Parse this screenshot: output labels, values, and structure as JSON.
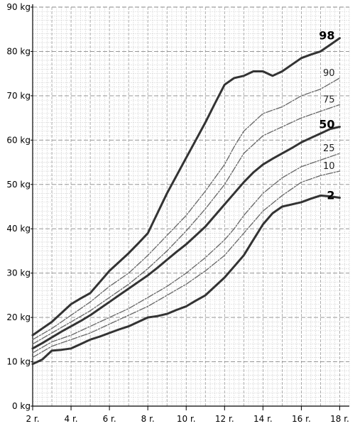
{
  "chart_data": {
    "type": "line",
    "title": "",
    "xlabel": "",
    "ylabel": "",
    "xlim": [
      2,
      18.5
    ],
    "ylim": [
      0,
      90
    ],
    "grid": true,
    "y_ticks": [
      {
        "value": 0,
        "label": "0 kg"
      },
      {
        "value": 10,
        "label": "10 kg"
      },
      {
        "value": 20,
        "label": "20 kg"
      },
      {
        "value": 30,
        "label": "30 kg"
      },
      {
        "value": 40,
        "label": "40 kg"
      },
      {
        "value": 50,
        "label": "50 kg"
      },
      {
        "value": 60,
        "label": "60 kg"
      },
      {
        "value": 70,
        "label": "70 kg"
      },
      {
        "value": 80,
        "label": "80 kg"
      },
      {
        "value": 90,
        "label": "90 kg"
      }
    ],
    "x_ticks": [
      {
        "value": 2,
        "label": "2 r."
      },
      {
        "value": 4,
        "label": "4 r."
      },
      {
        "value": 6,
        "label": "6 r."
      },
      {
        "value": 8,
        "label": "8 r."
      },
      {
        "value": 10,
        "label": "10 r."
      },
      {
        "value": 12,
        "label": "12 r."
      },
      {
        "value": 14,
        "label": "14 r."
      },
      {
        "value": 16,
        "label": "16 r."
      },
      {
        "value": 18,
        "label": "18 r."
      }
    ],
    "series": [
      {
        "name": "98",
        "major": true,
        "x": [
          2,
          2.5,
          3,
          3.5,
          4,
          4.5,
          5,
          5.5,
          6,
          6.5,
          7,
          7.5,
          8,
          8.5,
          9,
          9.5,
          10,
          10.5,
          11,
          11.5,
          12,
          12.5,
          13,
          13.5,
          14,
          14.5,
          15,
          15.5,
          16,
          16.5,
          17,
          17.5,
          18
        ],
        "y": [
          16,
          17.5,
          19,
          21,
          23,
          24.3,
          25.5,
          28,
          30.5,
          32.5,
          34.5,
          36.7,
          39,
          43.5,
          48,
          52,
          56,
          60,
          64,
          68.3,
          72.5,
          74,
          74.5,
          75.5,
          75.5,
          74.5,
          75.5,
          77,
          78.5,
          79.3,
          80,
          81.5,
          83
        ]
      },
      {
        "name": "90",
        "major": false,
        "x": [
          2,
          3,
          4,
          5,
          6,
          7,
          8,
          9,
          10,
          11,
          12,
          12.5,
          13,
          13.5,
          14,
          15,
          16,
          17,
          18
        ],
        "y": [
          15,
          17.5,
          20.5,
          23.5,
          27,
          30,
          34,
          38.5,
          43,
          48.5,
          54.5,
          58.5,
          62,
          64,
          66,
          67.5,
          70,
          71.5,
          74
        ]
      },
      {
        "name": "75",
        "major": false,
        "x": [
          2,
          3,
          4,
          5,
          6,
          7,
          8,
          9,
          10,
          11,
          12,
          12.5,
          13,
          13.5,
          14,
          15,
          16,
          17,
          18
        ],
        "y": [
          14,
          16.5,
          19,
          21.5,
          24.5,
          27.5,
          31,
          35,
          39.5,
          44.5,
          50,
          53.5,
          57,
          59,
          61,
          63,
          65,
          66.5,
          68
        ]
      },
      {
        "name": "50",
        "major": true,
        "x": [
          2,
          2.5,
          3,
          3.5,
          4,
          4.5,
          5,
          5.5,
          6,
          6.5,
          7,
          7.5,
          8,
          8.5,
          9,
          9.5,
          10,
          10.5,
          11,
          11.5,
          12,
          12.5,
          13,
          13.5,
          14,
          14.5,
          15,
          15.5,
          16,
          16.5,
          17,
          17.5,
          18
        ],
        "y": [
          13,
          14.2,
          15.5,
          16.8,
          18,
          19.2,
          20.5,
          22,
          23.5,
          25,
          26.5,
          28,
          29.5,
          31.2,
          33,
          34.8,
          36.5,
          38.5,
          40.5,
          43,
          45.5,
          48,
          50.5,
          52.7,
          54.5,
          55.8,
          57,
          58.2,
          59.5,
          60.5,
          61.5,
          62.5,
          63
        ]
      },
      {
        "name": "25",
        "major": false,
        "x": [
          2,
          3,
          4,
          5,
          6,
          7,
          8,
          9,
          10,
          11,
          12,
          12.5,
          13,
          13.5,
          14,
          15,
          16,
          17,
          18
        ],
        "y": [
          12,
          14.5,
          16,
          18,
          20,
          22,
          24.5,
          27,
          30,
          33.5,
          37.5,
          40,
          43,
          45.5,
          48,
          51.5,
          54,
          55.5,
          57
        ]
      },
      {
        "name": "10",
        "major": false,
        "x": [
          2,
          3,
          4,
          5,
          6,
          7,
          8,
          9,
          10,
          11,
          12,
          12.5,
          13,
          13.5,
          14,
          15,
          16,
          17,
          18
        ],
        "y": [
          11,
          13.5,
          15,
          16.5,
          18.5,
          20.5,
          22.5,
          25,
          27.5,
          30.5,
          34,
          36.5,
          39,
          41.5,
          44,
          47.5,
          50.5,
          52,
          53
        ]
      },
      {
        "name": "2",
        "major": true,
        "x": [
          2,
          2.5,
          3,
          3.5,
          4,
          4.5,
          5,
          5.5,
          6,
          6.5,
          7,
          7.5,
          8,
          8.5,
          9,
          9.5,
          10,
          10.5,
          11,
          11.5,
          12,
          12.5,
          13,
          13.5,
          14,
          14.5,
          15,
          15.5,
          16,
          16.5,
          17,
          17.5,
          18
        ],
        "y": [
          9.5,
          10.5,
          12.5,
          12.7,
          13,
          14,
          15,
          15.7,
          16.5,
          17.3,
          18,
          19,
          20,
          20.3,
          20.8,
          21.7,
          22.5,
          23.8,
          25,
          27,
          29,
          31.5,
          34,
          37.5,
          41,
          43.5,
          45,
          45.5,
          46,
          46.8,
          47.5,
          47.3,
          47
        ]
      }
    ]
  }
}
